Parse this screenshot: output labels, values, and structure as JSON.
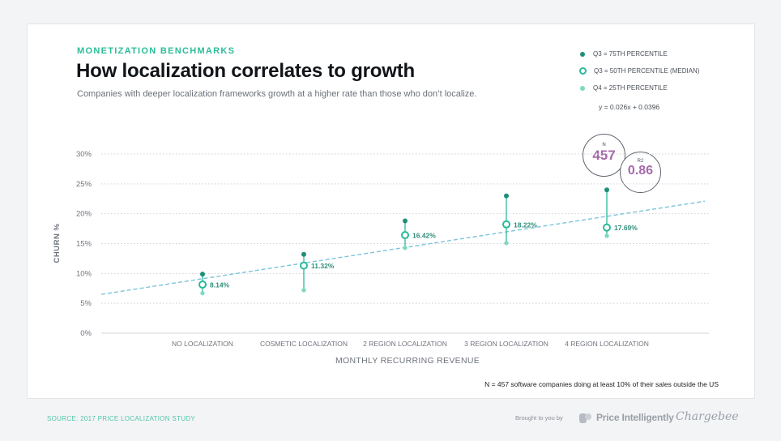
{
  "header": {
    "eyebrow": "MONETIZATION BENCHMARKS",
    "title": "How localization correlates to growth",
    "subtitle": "Companies with deeper localization frameworks growth at a higher rate than those who don’t localize."
  },
  "legend": {
    "q3_75": "Q3 = 75TH PERCENTILE",
    "q3_50": "Q3 = 50TH PERCENTILE (MEDIAN)",
    "q4_25": "Q4 = 25TH PERCENTILE",
    "equation": "y = 0.026x + 0.0396"
  },
  "stats": {
    "n_label": "N",
    "n_value": "457",
    "r2_label": "R2",
    "r2_value": "0.86"
  },
  "footnote": "N = 457 software companies doing at least 10% of their sales outside the US",
  "source": "SOURCE: 2017 PRICE LOCALIZATION STUDY",
  "branding": {
    "brought_by": "Brought to you by",
    "brand1": "Price Intelligently",
    "brand2": "Chargebee"
  },
  "colors": {
    "p75": "#1f8f78",
    "median": "#2bb89a",
    "p25": "#7fd9c2",
    "trend": "#7cc4da",
    "accent": "#2bbd9a",
    "stat_value": "#a56aab"
  },
  "chart_data": {
    "type": "scatter",
    "xlabel": "MONTHLY RECURRING REVENUE",
    "ylabel": "CHURN %",
    "yticks": [
      "0%",
      "5%",
      "10%",
      "15%",
      "20%",
      "25%",
      "30%"
    ],
    "ylim": [
      0,
      30
    ],
    "grid": true,
    "categories": [
      "NO LOCALIZATION",
      "COSMETIC LOCALIZATION",
      "2 REGION LOCALIZATION",
      "3 REGION LOCALIZATION",
      "4 REGION LOCALIZATION"
    ],
    "series": [
      {
        "name": "Q3 = 75TH PERCENTILE",
        "values": [
          9.9,
          13.2,
          18.8,
          23.0,
          24.0
        ]
      },
      {
        "name": "Q3 = 50TH PERCENTILE (MEDIAN)",
        "values": [
          8.14,
          11.32,
          16.42,
          18.22,
          17.69
        ]
      },
      {
        "name": "Q4 = 25TH PERCENTILE",
        "values": [
          6.7,
          7.2,
          14.3,
          15.1,
          16.3
        ]
      }
    ],
    "median_labels": [
      "8.14%",
      "11.32%",
      "16.42%",
      "18.22%",
      "17.69%"
    ],
    "trendline": {
      "start": 6.5,
      "end": 22.1
    }
  }
}
